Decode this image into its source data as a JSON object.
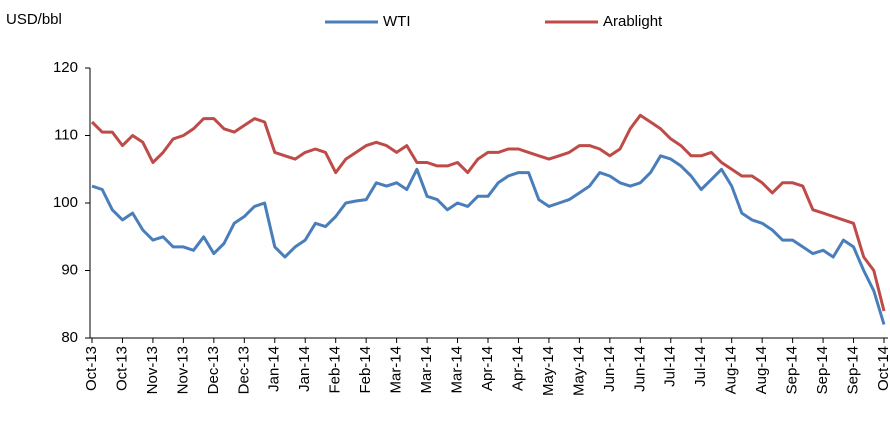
{
  "chart_data": {
    "type": "line",
    "y_label": "USD/bbl",
    "categories": [
      "Oct-13",
      null,
      null,
      "Oct-13",
      null,
      null,
      "Nov-13",
      null,
      null,
      "Nov-13",
      null,
      null,
      "Dec-13",
      null,
      null,
      "Dec-13",
      null,
      null,
      "Jan-14",
      null,
      null,
      "Jan-14",
      null,
      null,
      "Feb-14",
      null,
      null,
      "Feb-14",
      null,
      null,
      "Mar-14",
      null,
      null,
      "Mar-14",
      null,
      null,
      "Mar-14",
      null,
      null,
      "Apr-14",
      null,
      null,
      "Apr-14",
      null,
      null,
      "May-14",
      null,
      null,
      "May-14",
      null,
      null,
      "Jun-14",
      null,
      null,
      "Jun-14",
      null,
      null,
      "Jul-14",
      null,
      null,
      "Jul-14",
      null,
      null,
      "Aug-14",
      null,
      null,
      "Aug-14",
      null,
      null,
      "Sep-14",
      null,
      null,
      "Sep-14",
      null,
      null,
      "Sep-14",
      null,
      null,
      "Oct-14"
    ],
    "series": [
      {
        "name": "WTI",
        "color": "#4a7ebb",
        "values": [
          102.5,
          102,
          99,
          97.5,
          98.5,
          96,
          94.5,
          95,
          93.5,
          93.5,
          93,
          95,
          92.5,
          94,
          97,
          98,
          99.5,
          100,
          93.5,
          92,
          93.5,
          94.5,
          97,
          96.5,
          98,
          100,
          100.3,
          100.5,
          103,
          102.5,
          103,
          102,
          105,
          101,
          100.5,
          99,
          100,
          99.5,
          101,
          101,
          103,
          104,
          104.5,
          104.5,
          100.5,
          99.5,
          100,
          100.5,
          101.5,
          102.5,
          104.5,
          104,
          103,
          102.5,
          103,
          104.5,
          107,
          106.5,
          105.5,
          104,
          102,
          103.5,
          105,
          102.5,
          98.5,
          97.5,
          97,
          96,
          94.5,
          94.5,
          93.5,
          92.5,
          93,
          92,
          94.5,
          93.5,
          90,
          87,
          82
        ]
      },
      {
        "name": "Arablight",
        "color": "#be4b48",
        "values": [
          112,
          110.5,
          110.5,
          108.5,
          110,
          109,
          106,
          107.5,
          109.5,
          110,
          111,
          112.5,
          112.5,
          111,
          110.5,
          111.5,
          112.5,
          112,
          107.5,
          107,
          106.5,
          107.5,
          108,
          107.5,
          104.5,
          106.5,
          107.5,
          108.5,
          109,
          108.5,
          107.5,
          108.5,
          106,
          106,
          105.5,
          105.5,
          106,
          104.5,
          106.5,
          107.5,
          107.5,
          108,
          108,
          107.5,
          107,
          106.5,
          107,
          107.5,
          108.5,
          108.5,
          108,
          107,
          108,
          111,
          113,
          112,
          111,
          109.5,
          108.5,
          107,
          107,
          107.5,
          106,
          105,
          104,
          104,
          103,
          101.5,
          103,
          103,
          102.5,
          99,
          98.5,
          98,
          97.5,
          97,
          92,
          90,
          84
        ]
      }
    ],
    "ylim": [
      80,
      120
    ],
    "yticks": [
      80,
      90,
      100,
      110,
      120
    ],
    "grid": false,
    "legend": "top"
  }
}
